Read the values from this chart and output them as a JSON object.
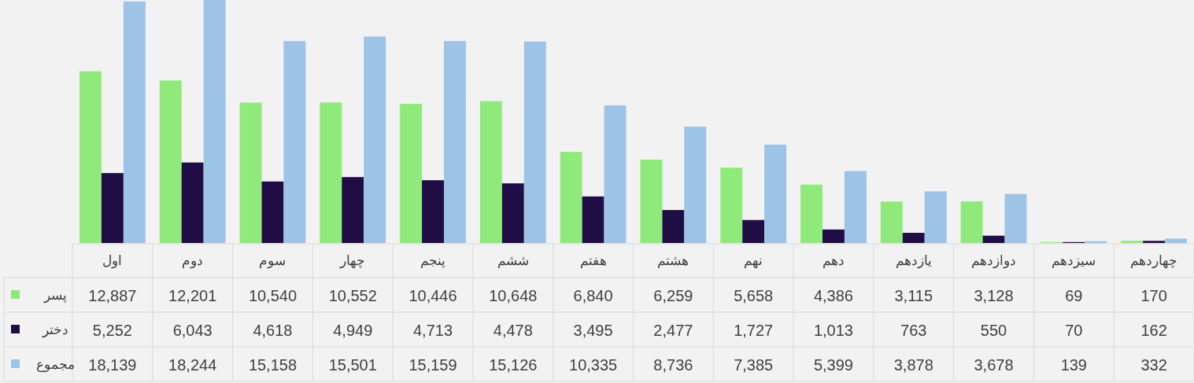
{
  "chart_data": {
    "type": "bar",
    "categories": [
      "اول",
      "دوم",
      "سوم",
      "چهار",
      "پنجم",
      "ششم",
      "هفتم",
      "هشتم",
      "نهم",
      "دهم",
      "یازدهم",
      "دوازدهم",
      "سیزدهم",
      "چهاردهم"
    ],
    "ylim": [
      0,
      18244
    ],
    "series": [
      {
        "name": "پسر",
        "color": "#90ea7b",
        "values": [
          12887,
          12201,
          10540,
          10552,
          10446,
          10648,
          6840,
          6259,
          5658,
          4386,
          3115,
          3128,
          69,
          170
        ],
        "value_labels": [
          "12,887",
          "12,201",
          "10,540",
          "10,552",
          "10,446",
          "10,648",
          "6,840",
          "6,259",
          "5,658",
          "4,386",
          "3,115",
          "3,128",
          "69",
          "170"
        ]
      },
      {
        "name": "دختر",
        "color": "#200d45",
        "values": [
          5252,
          6043,
          4618,
          4949,
          4713,
          4478,
          3495,
          2477,
          1727,
          1013,
          763,
          550,
          70,
          162
        ],
        "value_labels": [
          "5,252",
          "6,043",
          "4,618",
          "4,949",
          "4,713",
          "4,478",
          "3,495",
          "2,477",
          "1,727",
          "1,013",
          "763",
          "550",
          "70",
          "162"
        ]
      },
      {
        "name": "مجموع",
        "color": "#9dc3e6",
        "values": [
          18139,
          18244,
          15158,
          15501,
          15159,
          15126,
          10335,
          8736,
          7385,
          5399,
          3878,
          3678,
          139,
          332
        ],
        "value_labels": [
          "18,139",
          "18,244",
          "15,158",
          "15,501",
          "15,159",
          "15,126",
          "10,335",
          "8,736",
          "7,385",
          "5,399",
          "3,878",
          "3,678",
          "139",
          "332"
        ]
      }
    ],
    "legend": "left"
  }
}
